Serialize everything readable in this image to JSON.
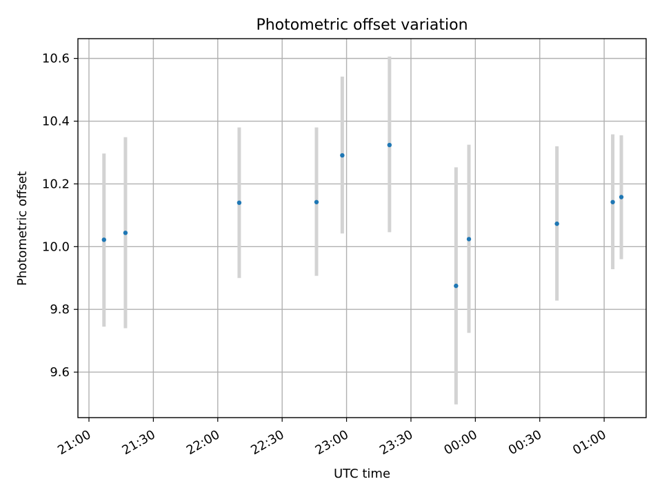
{
  "chart_data": {
    "type": "scatter",
    "title": "Photometric offset variation",
    "xlabel": "UTC time",
    "ylabel": "Photometric offset",
    "grid": true,
    "ylim": [
      9.455,
      10.663
    ],
    "yticks": [
      9.6,
      9.8,
      10.0,
      10.2,
      10.4,
      10.6
    ],
    "ytick_labels": [
      "9.6",
      "9.8",
      "10.0",
      "10.2",
      "10.4",
      "10.6"
    ],
    "xlim": [
      "21:00",
      "01:20"
    ],
    "xticks": [
      "21:00",
      "21:30",
      "22:00",
      "22:30",
      "23:00",
      "23:30",
      "00:00",
      "00:30",
      "01:00"
    ],
    "xtick_labels": [
      "21:00",
      "21:30",
      "22:00",
      "22:30",
      "23:00",
      "23:30",
      "00:00",
      "00:30",
      "01:00"
    ],
    "colors": {
      "marker": "#1f77b4",
      "errorbar": "#d3d3d3",
      "grid": "#b0b0b0"
    },
    "series": [
      {
        "x": [
          "21:07",
          "21:17",
          "22:10",
          "22:46",
          "22:58",
          "23:20",
          "23:51",
          "23:57",
          "00:38",
          "01:04",
          "01:08"
        ],
        "y": [
          10.022,
          10.044,
          10.14,
          10.142,
          10.291,
          10.324,
          9.875,
          10.024,
          10.073,
          10.142,
          10.158
        ],
        "err_low": [
          9.745,
          9.74,
          9.9,
          9.907,
          10.042,
          10.046,
          9.497,
          9.725,
          9.828,
          9.928,
          9.96
        ],
        "err_high": [
          10.297,
          10.349,
          10.38,
          10.38,
          10.542,
          10.606,
          10.253,
          10.325,
          10.32,
          10.358,
          10.355
        ]
      }
    ]
  }
}
